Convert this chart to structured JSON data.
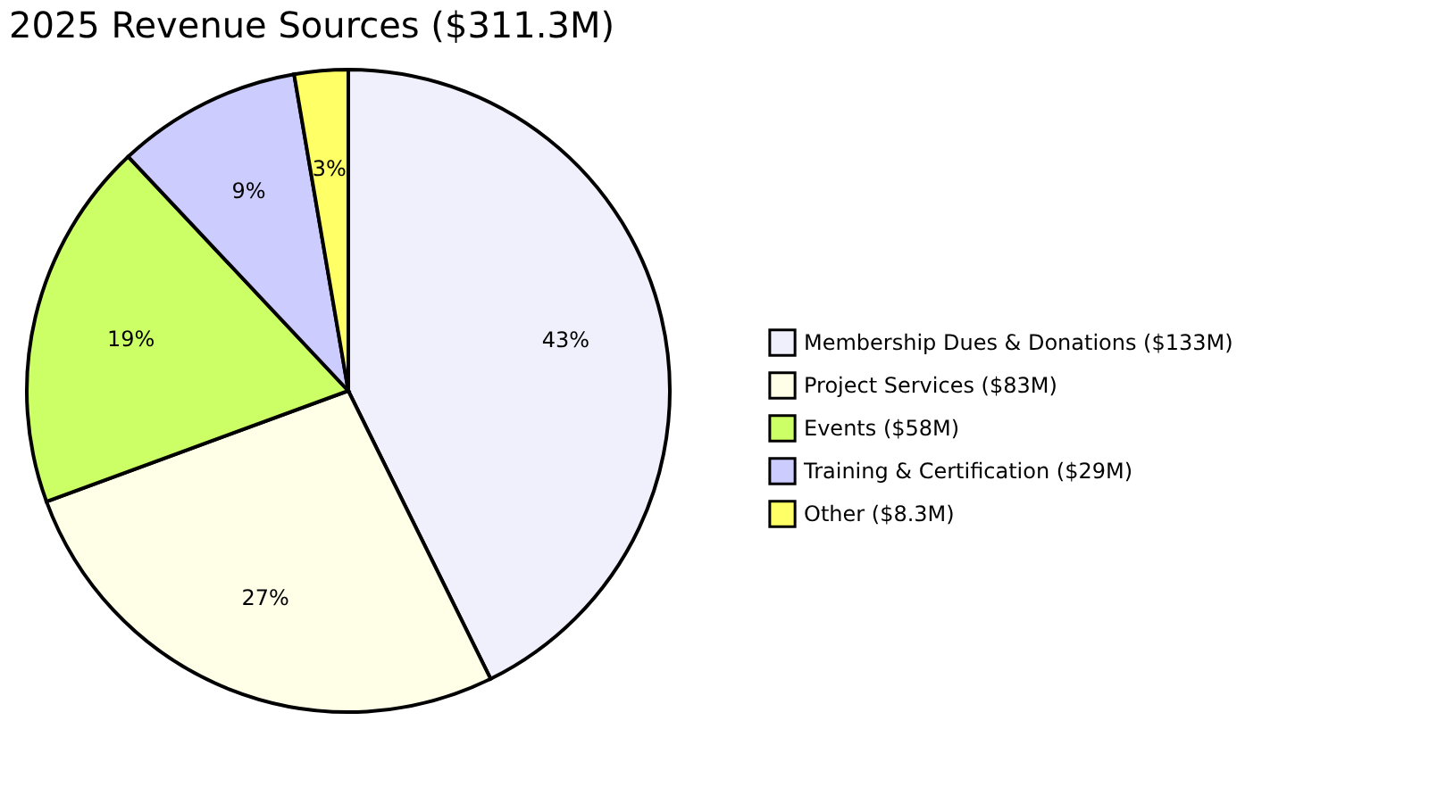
{
  "chart_data": {
    "type": "pie",
    "title": "2025 Revenue Sources ($311.3M)",
    "categories": [
      "Membership Dues & Donations ($133M)",
      "Project Services ($83M)",
      "Events ($58M)",
      "Training & Certification ($29M)",
      "Other ($8.3M)"
    ],
    "values": [
      42.7,
      26.7,
      18.6,
      9.3,
      2.7
    ],
    "value_labels": [
      "43%",
      "27%",
      "19%",
      "9%",
      "3%"
    ],
    "colors": [
      "#f0f0fc",
      "#ffffe8",
      "#ccff66",
      "#ccccff",
      "#ffff66"
    ],
    "legend": "right"
  }
}
